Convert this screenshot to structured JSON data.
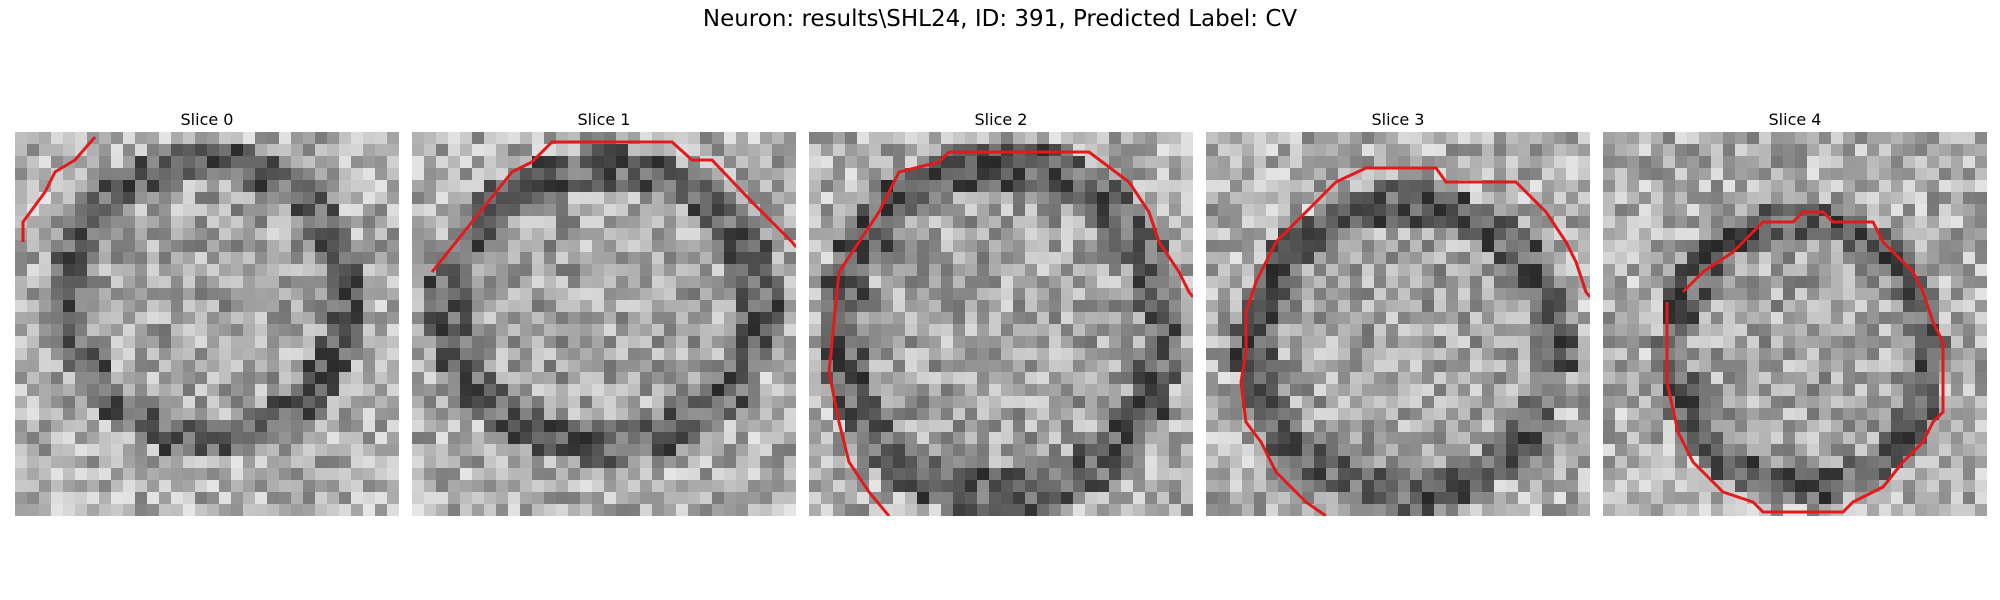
{
  "figure": {
    "title": "Neuron: results\\SHL24, ID: 391, Predicted Label: CV"
  },
  "panels": [
    {
      "title": "Slice 0"
    },
    {
      "title": "Slice 1"
    },
    {
      "title": "Slice 2"
    },
    {
      "title": "Slice 3"
    },
    {
      "title": "Slice 4"
    }
  ],
  "colors": {
    "contour": "#e31a1c",
    "background": "#ffffff"
  }
}
